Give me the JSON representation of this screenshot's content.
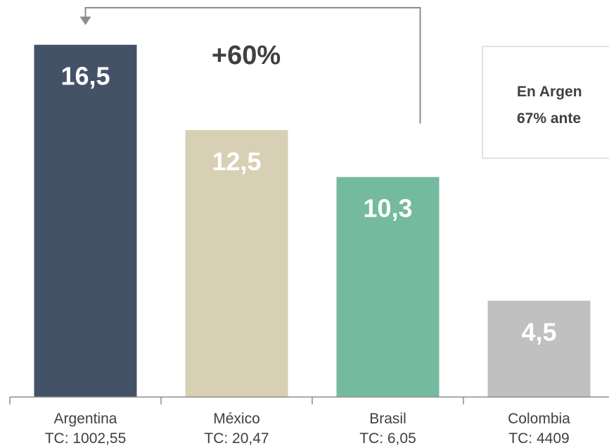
{
  "chart_data": {
    "type": "bar",
    "categories": [
      "Argentina",
      "México",
      "Brasil",
      "Colombia"
    ],
    "subcategories": [
      "TC: 1002,55",
      "TC: 20,47",
      "TC: 6,05",
      "TC: 4409"
    ],
    "values": [
      16.5,
      12.5,
      10.3,
      4.5
    ],
    "value_labels": [
      "16,5",
      "12,5",
      "10,3",
      "4,5"
    ],
    "colors": [
      "#445268",
      "#d8d0b4",
      "#74ba9f",
      "#c0c0c0"
    ],
    "ylim": [
      0,
      18.6
    ],
    "grid": false,
    "annotation": {
      "text": "+60%",
      "from": "Brasil",
      "to": "Argentina",
      "arrow": "bracket"
    },
    "note": {
      "lines": [
        "En Argen",
        "67% ante"
      ]
    }
  }
}
